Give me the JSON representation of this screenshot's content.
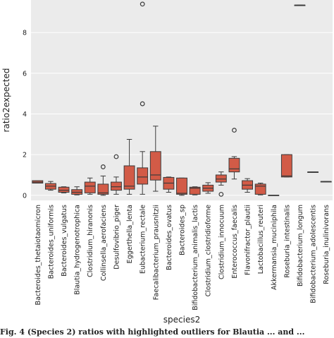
{
  "chart_data": {
    "type": "box",
    "title": "",
    "xlabel": "species2",
    "ylabel": "ratio2expected",
    "ylim": [
      -0.25,
      9.6
    ],
    "yticks": [
      0,
      2,
      4,
      6,
      8
    ],
    "grid": true,
    "box_color": "#d25b47",
    "edge_color": "#3b3b3b",
    "background_color": "#ebebeb",
    "categories": [
      "Bacteroides_thetaiotaomicron",
      "Bacteroides_uniformis",
      "Bacteroides_vulgatus",
      "Blautia_hydrogenotrophica",
      "Clostridium_hiranonis",
      "Collinsella_aerofaciens",
      "Desulfovibrio_piger",
      "Eggerthella_lenta",
      "Eubacterium_rectale",
      "Faecalibacterium_prausnitzii",
      "Bacteroides_ovatus",
      "Bacteroides_sp",
      "Bifidobacterium_animalis_lactis",
      "Clostridium_clostridioforme",
      "Clostridium_innocuum",
      "Enterococcus_faecalis",
      "Flavonifractor_plautii",
      "Lactobacillus_reuteri",
      "Akkermansia_muciniphila",
      "Roseburia_intestinalis",
      "Bifidobacterium_longum",
      "Bifidobacterium_adolescentis",
      "Roseburia_inulinivorans"
    ],
    "boxes": [
      {
        "low": 0.6,
        "q1": 0.6,
        "median": 0.65,
        "q3": 0.72,
        "high": 0.72,
        "outliers": []
      },
      {
        "low": 0.25,
        "q1": 0.3,
        "median": 0.45,
        "q3": 0.58,
        "high": 0.68,
        "outliers": []
      },
      {
        "low": 0.12,
        "q1": 0.15,
        "median": 0.25,
        "q3": 0.4,
        "high": 0.42,
        "outliers": []
      },
      {
        "low": 0.02,
        "q1": 0.05,
        "median": 0.15,
        "q3": 0.28,
        "high": 0.42,
        "outliers": []
      },
      {
        "low": 0.05,
        "q1": 0.12,
        "median": 0.45,
        "q3": 0.65,
        "high": 0.85,
        "outliers": []
      },
      {
        "low": 0.0,
        "q1": 0.05,
        "median": 0.12,
        "q3": 0.55,
        "high": 0.95,
        "outliers": [
          1.4
        ]
      },
      {
        "low": 0.05,
        "q1": 0.25,
        "median": 0.42,
        "q3": 0.65,
        "high": 0.9,
        "outliers": [
          1.9
        ]
      },
      {
        "low": 0.05,
        "q1": 0.3,
        "median": 0.45,
        "q3": 1.45,
        "high": 2.75,
        "outliers": []
      },
      {
        "low": 0.05,
        "q1": 0.55,
        "median": 0.9,
        "q3": 1.35,
        "high": 2.15,
        "outliers": [
          4.5,
          9.4
        ]
      },
      {
        "low": 0.2,
        "q1": 0.75,
        "median": 1.0,
        "q3": 2.15,
        "high": 3.4,
        "outliers": []
      },
      {
        "low": 0.15,
        "q1": 0.3,
        "median": 0.6,
        "q3": 0.88,
        "high": 0.9,
        "outliers": []
      },
      {
        "low": 0.0,
        "q1": 0.05,
        "median": 0.1,
        "q3": 0.85,
        "high": 0.85,
        "outliers": []
      },
      {
        "low": 0.02,
        "q1": 0.05,
        "median": 0.35,
        "q3": 0.4,
        "high": 0.42,
        "outliers": []
      },
      {
        "low": 0.1,
        "q1": 0.2,
        "median": 0.35,
        "q3": 0.5,
        "high": 0.62,
        "outliers": []
      },
      {
        "low": 0.5,
        "q1": 0.65,
        "median": 0.8,
        "q3": 1.0,
        "high": 1.15,
        "outliers": [
          0.05
        ]
      },
      {
        "low": 0.8,
        "q1": 1.15,
        "median": 1.3,
        "q3": 1.82,
        "high": 1.9,
        "outliers": [
          3.2
        ]
      },
      {
        "low": 0.15,
        "q1": 0.3,
        "median": 0.5,
        "q3": 0.72,
        "high": 0.82,
        "outliers": []
      },
      {
        "low": 0.02,
        "q1": 0.05,
        "median": 0.45,
        "q3": 0.55,
        "high": 0.6,
        "outliers": []
      },
      {
        "low": 0.0,
        "q1": 0.0,
        "median": 0.0,
        "q3": 0.01,
        "high": 0.01,
        "outliers": []
      },
      {
        "low": 0.9,
        "q1": 0.9,
        "median": 0.95,
        "q3": 2.0,
        "high": 2.0,
        "outliers": []
      },
      {
        "low": 9.35,
        "q1": 9.35,
        "median": 9.35,
        "q3": 9.35,
        "high": 9.35,
        "outliers": []
      },
      {
        "low": 1.15,
        "q1": 1.15,
        "median": 1.15,
        "q3": 1.15,
        "high": 1.15,
        "outliers": []
      },
      {
        "low": 0.68,
        "q1": 0.68,
        "median": 0.68,
        "q3": 0.68,
        "high": 0.68,
        "outliers": []
      }
    ]
  },
  "caption": "Fig. 4 (Species 2) ratios with highlighted outliers for Blautia ... and ..."
}
